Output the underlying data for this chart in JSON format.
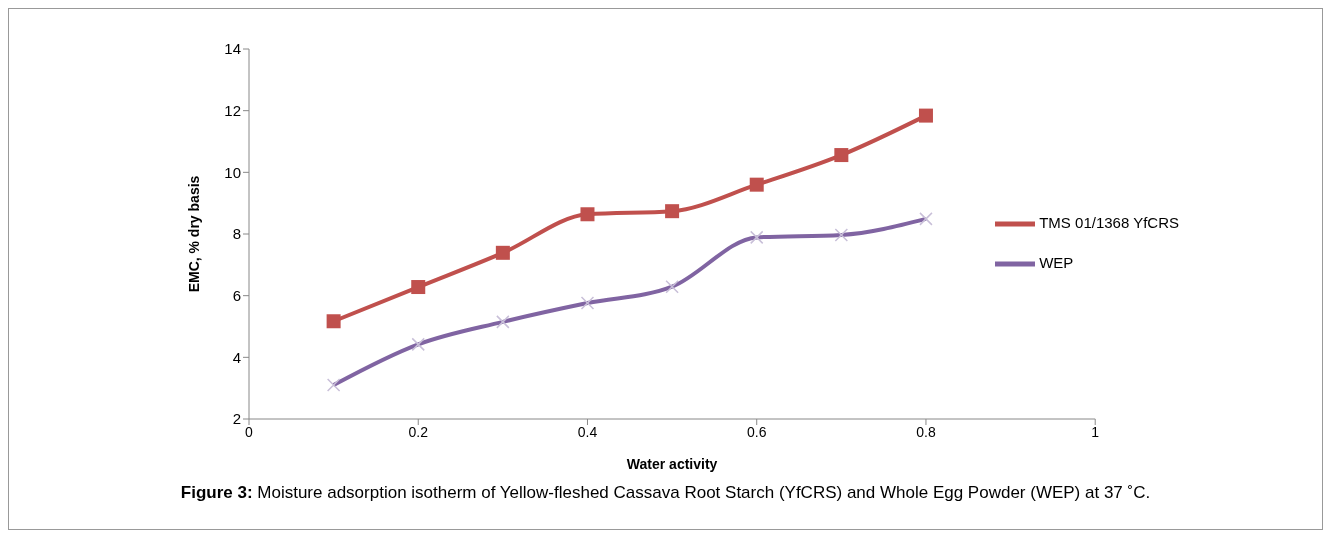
{
  "chart_data": {
    "type": "line",
    "xlabel": "Water activity",
    "ylabel": "EMC, % dry basis",
    "x": [
      0.1,
      0.2,
      0.3,
      0.4,
      0.5,
      0.6,
      0.7,
      0.8
    ],
    "series": [
      {
        "name": "TMS 01/1368 YfCRS",
        "color": "#c0504d",
        "marker": "square",
        "values": [
          5.17,
          6.28,
          7.39,
          8.64,
          8.74,
          9.6,
          10.56,
          11.84
        ]
      },
      {
        "name": "WEP",
        "color": "#8064a2",
        "marker": "cross",
        "values": [
          3.1,
          4.42,
          5.15,
          5.76,
          6.29,
          7.89,
          7.97,
          8.49
        ]
      }
    ],
    "xlim": [
      0,
      1
    ],
    "xticks": [
      0,
      0.2,
      0.4,
      0.6,
      0.8,
      1
    ],
    "ylim": [
      2,
      14
    ],
    "yticks": [
      2,
      4,
      6,
      8,
      10,
      12,
      14
    ],
    "grid": false,
    "legend": "right",
    "line_style": "solid",
    "annotations": [
      "Figure 3: Moisture adsorption isotherm of Yellow-fleshed Cassava Root Starch (YfCRS) and Whole Egg Powder (WEP) at 37 ˚C."
    ]
  }
}
